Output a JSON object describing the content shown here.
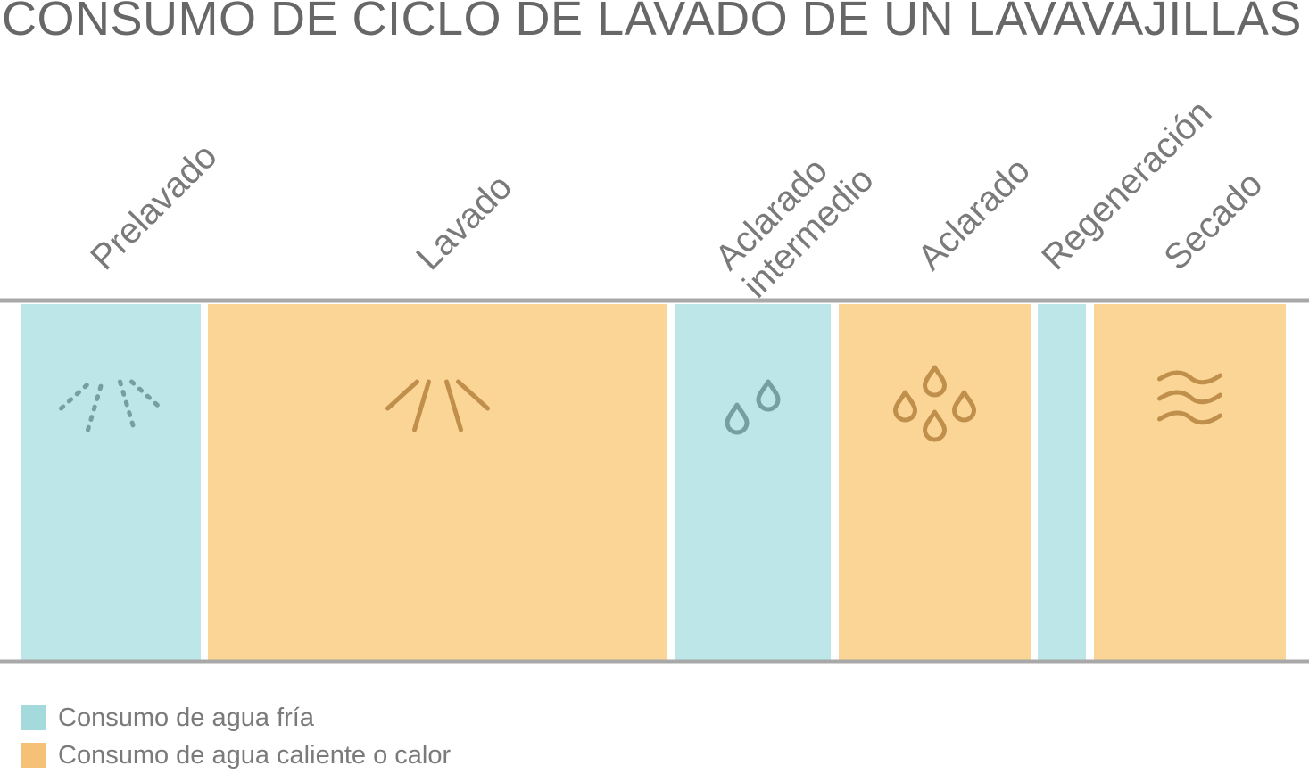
{
  "title": "CONSUMO DE CICLO DE LAVADO DE UN LAVAVAJILLAS",
  "colors": {
    "cold": "#bce6e7",
    "hot": "#fad595",
    "cold_icon": "#76a0a0",
    "hot_icon": "#bf8f4b",
    "legend_cold": "#a4dadb",
    "legend_hot": "#f5c176",
    "rule": "#a8a8a8"
  },
  "stages": [
    {
      "id": "prelavado",
      "label_lines": [
        "Prelavado"
      ],
      "type": "cold",
      "icon": "spray-dotted-icon"
    },
    {
      "id": "lavado",
      "label_lines": [
        "Lavado"
      ],
      "type": "hot",
      "icon": "spray-icon"
    },
    {
      "id": "aclarado-intermedio",
      "label_lines": [
        "Aclarado",
        "intermedio"
      ],
      "type": "cold",
      "icon": "two-drops-icon"
    },
    {
      "id": "aclarado",
      "label_lines": [
        "Aclarado"
      ],
      "type": "hot",
      "icon": "four-drops-icon"
    },
    {
      "id": "regeneracion",
      "label_lines": [
        "Regeneración"
      ],
      "type": "cold",
      "icon": ""
    },
    {
      "id": "secado",
      "label_lines": [
        "Secado"
      ],
      "type": "hot",
      "icon": "heat-waves-icon"
    }
  ],
  "legend": [
    {
      "type": "cold",
      "label": "Consumo de agua fría"
    },
    {
      "type": "hot",
      "label": "Consumo de agua caliente o calor"
    }
  ]
}
